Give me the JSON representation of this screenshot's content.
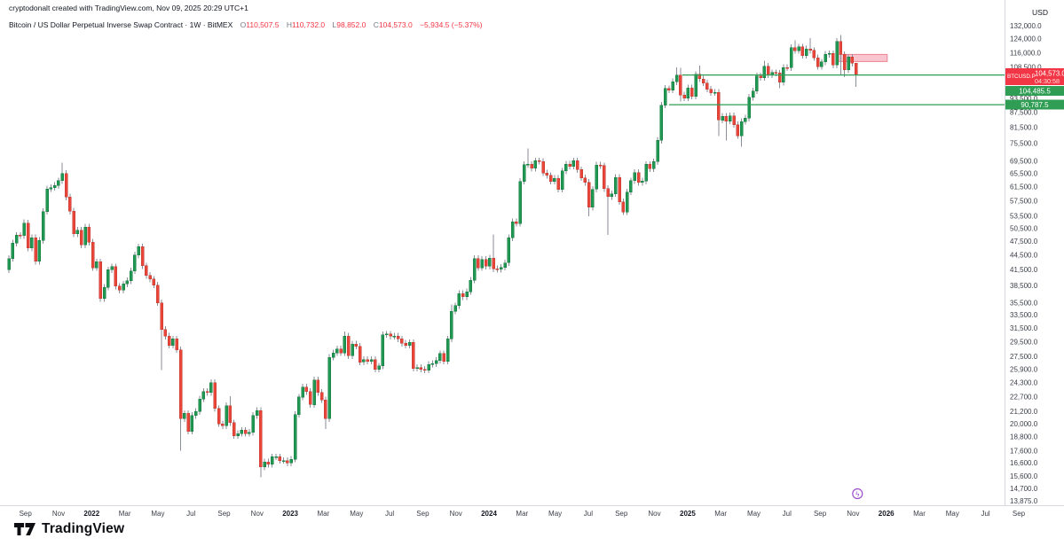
{
  "header": {
    "attribution": "cryptodonalt created with TradingView.com, Nov 09, 2025 20:29 UTC+1",
    "symbol_title": "Bitcoin / US Dollar Perpetual Inverse Swap Contract · 1W · BitMEX",
    "ohlc": {
      "o_key": "O",
      "o_val": "110,507.5",
      "h_key": "H",
      "h_val": "110,732.0",
      "l_key": "L",
      "l_val": "98,852.0",
      "c_key": "C",
      "c_val": "104,573.0"
    },
    "change": "−5,934.5 (−5.37%)"
  },
  "price_axis": {
    "currency_label": "USD",
    "ticks": [
      {
        "p": 132000,
        "label": "132,000.0"
      },
      {
        "p": 124000,
        "label": "124,000.0"
      },
      {
        "p": 116000,
        "label": "116,000.0"
      },
      {
        "p": 108500,
        "label": "108,500.0"
      },
      {
        "p": 93500,
        "label": "93,500.0"
      },
      {
        "p": 87500,
        "label": "87,500.0"
      },
      {
        "p": 81500,
        "label": "81,500.0"
      },
      {
        "p": 75500,
        "label": "75,500.0"
      },
      {
        "p": 69500,
        "label": "69,500.0"
      },
      {
        "p": 65500,
        "label": "65,500.0"
      },
      {
        "p": 61500,
        "label": "61,500.0"
      },
      {
        "p": 57500,
        "label": "57,500.0"
      },
      {
        "p": 53500,
        "label": "53,500.0"
      },
      {
        "p": 50500,
        "label": "50,500.0"
      },
      {
        "p": 47500,
        "label": "47,500.0"
      },
      {
        "p": 44500,
        "label": "44,500.0"
      },
      {
        "p": 41500,
        "label": "41,500.0"
      },
      {
        "p": 38500,
        "label": "38,500.0"
      },
      {
        "p": 35500,
        "label": "35,500.0"
      },
      {
        "p": 33500,
        "label": "33,500.0"
      },
      {
        "p": 31500,
        "label": "31,500.0"
      },
      {
        "p": 29500,
        "label": "29,500.0"
      },
      {
        "p": 27500,
        "label": "27,500.0"
      },
      {
        "p": 25900,
        "label": "25,900.0"
      },
      {
        "p": 24300,
        "label": "24,300.0"
      },
      {
        "p": 22700,
        "label": "22,700.0"
      },
      {
        "p": 21200,
        "label": "21,200.0"
      },
      {
        "p": 20000,
        "label": "20,000.0"
      },
      {
        "p": 18800,
        "label": "18,800.0"
      },
      {
        "p": 17600,
        "label": "17,600.0"
      },
      {
        "p": 16600,
        "label": "16,600.0"
      },
      {
        "p": 15600,
        "label": "15,600.0"
      },
      {
        "p": 14700,
        "label": "14,700.0"
      },
      {
        "p": 13875,
        "label": "13,875.0"
      }
    ],
    "last_price_badge": {
      "symbol": "BTCUSD.P",
      "price": "104,573.0",
      "countdown": "04:30:58"
    },
    "level_badges": [
      {
        "price": 104485.5,
        "label": "104,485.5"
      },
      {
        "price": 90787.5,
        "label": "90,787.5"
      }
    ]
  },
  "time_axis": {
    "labels": [
      {
        "t": "Sep",
        "m": 1
      },
      {
        "t": "Nov",
        "m": 3
      },
      {
        "t": "2022",
        "m": 5,
        "y": 1
      },
      {
        "t": "Mar",
        "m": 7
      },
      {
        "t": "May",
        "m": 9
      },
      {
        "t": "Jul",
        "m": 11
      },
      {
        "t": "Sep",
        "m": 13
      },
      {
        "t": "Nov",
        "m": 15
      },
      {
        "t": "2023",
        "m": 17,
        "y": 1
      },
      {
        "t": "Mar",
        "m": 19
      },
      {
        "t": "May",
        "m": 21
      },
      {
        "t": "Jul",
        "m": 23
      },
      {
        "t": "Sep",
        "m": 25
      },
      {
        "t": "Nov",
        "m": 27
      },
      {
        "t": "2024",
        "m": 29,
        "y": 1
      },
      {
        "t": "Mar",
        "m": 31
      },
      {
        "t": "May",
        "m": 33
      },
      {
        "t": "Jul",
        "m": 35
      },
      {
        "t": "Sep",
        "m": 37
      },
      {
        "t": "Nov",
        "m": 39
      },
      {
        "t": "2025",
        "m": 41,
        "y": 1
      },
      {
        "t": "Mar",
        "m": 43
      },
      {
        "t": "May",
        "m": 45
      },
      {
        "t": "Jul",
        "m": 47
      },
      {
        "t": "Sep",
        "m": 49
      },
      {
        "t": "Nov",
        "m": 51
      },
      {
        "t": "2026",
        "m": 53,
        "y": 1
      },
      {
        "t": "Mar",
        "m": 55
      },
      {
        "t": "May",
        "m": 57
      },
      {
        "t": "Jul",
        "m": 59
      },
      {
        "t": "Sep",
        "m": 61
      }
    ]
  },
  "chart_data": {
    "type": "candlestick",
    "title": "Bitcoin / US Dollar Perpetual Inverse Swap Contract",
    "timeframe": "1W",
    "exchange": "BitMEX",
    "symbol": "BTCUSD.P",
    "scale": "log",
    "ylabel": "USD",
    "y_range_visible": [
      13875,
      132000
    ],
    "x_range": [
      "Aug 2021",
      "Sep 2026"
    ],
    "start_week": "2021-08-02",
    "first_open": 41500,
    "closes": [
      43800,
      47100,
      48900,
      48800,
      51800,
      46000,
      48300,
      43200,
      47700,
      54700,
      60900,
      61300,
      61900,
      63300,
      65500,
      58600,
      54800,
      49200,
      50100,
      46700,
      50800,
      47300,
      41900,
      43100,
      36200,
      38200,
      41500,
      42100,
      38400,
      37700,
      38800,
      39400,
      41300,
      44500,
      46300,
      42300,
      40400,
      39700,
      38600,
      35500,
      31300,
      30300,
      29000,
      29900,
      28400,
      20500,
      21000,
      19300,
      20800,
      21200,
      22500,
      23300,
      23200,
      24300,
      21500,
      20000,
      19800,
      21800,
      20100,
      18900,
      19100,
      19400,
      19100,
      19200,
      20800,
      21300,
      16300,
      16700,
      16500,
      17100,
      17100,
      16800,
      16800,
      16600,
      16900,
      20900,
      22700,
      23800,
      23300,
      21900,
      24600,
      23200,
      22400,
      20500,
      27400,
      28000,
      28500,
      28000,
      30300,
      27600,
      29200,
      28900,
      26800,
      27100,
      26900,
      27100,
      25900,
      26300,
      30500,
      30600,
      30300,
      30300,
      29900,
      29300,
      29000,
      29400,
      26000,
      26100,
      25900,
      25800,
      26500,
      26600,
      27000,
      27900,
      26900,
      29900,
      34100,
      35000,
      37100,
      36500,
      37400,
      39500,
      43800,
      41900,
      43600,
      42200,
      43900,
      41700,
      41600,
      42000,
      42900,
      48300,
      52100,
      51700,
      63100,
      68300,
      68400,
      67200,
      69600,
      69400,
      65700,
      64900,
      63100,
      64000,
      60800,
      66300,
      68500,
      67800,
      69600,
      66700,
      64200,
      62800,
      55800,
      60800,
      68200,
      68000,
      61000,
      58700,
      59500,
      64300,
      57300,
      54600,
      60000,
      63300,
      65800,
      62800,
      63200,
      68400,
      67000,
      69300,
      76700,
      90600,
      98000,
      97300,
      101200,
      104400,
      95100,
      93700,
      98300,
      94500,
      104800,
      102600,
      100600,
      97700,
      96100,
      96200,
      84400,
      86000,
      84000,
      86100,
      82600,
      78400,
      83800,
      85200,
      94000,
      96900,
      104100,
      103200,
      109000,
      104600,
      105700,
      105500,
      100900,
      108300,
      108200,
      119000,
      117300,
      119400,
      114700,
      118200,
      117400,
      113400,
      108800,
      111200,
      115300,
      115700,
      109600,
      122600,
      115200,
      107100,
      113800,
      110507,
      104573
    ],
    "default_wick_pct": 1.5,
    "wick_overrides": {
      "4": [
        52700,
        null
      ],
      "14": [
        69000,
        null
      ],
      "40": [
        null,
        25800
      ],
      "45": [
        null,
        17600
      ],
      "58": [
        22800,
        null
      ],
      "66": [
        null,
        15500
      ],
      "83": [
        null,
        19500
      ],
      "88": [
        31000,
        null
      ],
      "116": [
        35200,
        null
      ],
      "127": [
        49100,
        null
      ],
      "136": [
        73800,
        null
      ],
      "152": [
        null,
        53500
      ],
      "157": [
        null,
        49000
      ],
      "172": [
        99600,
        null
      ],
      "175": [
        108300,
        null
      ],
      "176": [
        108200,
        92200
      ],
      "181": [
        109300,
        null
      ],
      "186": [
        null,
        78200
      ],
      "188": [
        null,
        76600
      ],
      "192": [
        null,
        74400
      ],
      "198": [
        111900,
        null
      ],
      "202": [
        null,
        98200
      ],
      "206": [
        123200,
        null
      ],
      "210": [
        124500,
        null
      ],
      "218": [
        126200,
        104600
      ],
      "219": [
        null,
        103500
      ],
      "222": [
        110732,
        98852
      ]
    },
    "levels": [
      {
        "price": 104485.5,
        "from_week": 176.5
      },
      {
        "price": 90787.5,
        "from_week": 173.0
      }
    ],
    "supply_zone": {
      "price_top": 115200,
      "price_bottom": 111400,
      "from_week": 217.4,
      "to_week": 230.2
    },
    "event_marker": {
      "week": 222.4,
      "glyph": "ϟ"
    }
  },
  "colors": {
    "up": "#209853",
    "up_border": "#157a3d",
    "down": "#e8463a",
    "down_border": "#c0392f",
    "wick": "#8a8e98",
    "level_line": "#2f9e54",
    "level_label_bg": "#2f9e54",
    "zone_fill": "#f9c5ce",
    "zone_border": "#ef8193",
    "last_price": "#f23645",
    "axis_text": "#3a3e47",
    "axis_year_text": "#131722",
    "axis_border": "#d6d9e0",
    "event_purple": "#9c4dcc"
  },
  "logo": {
    "text": "TradingView"
  }
}
